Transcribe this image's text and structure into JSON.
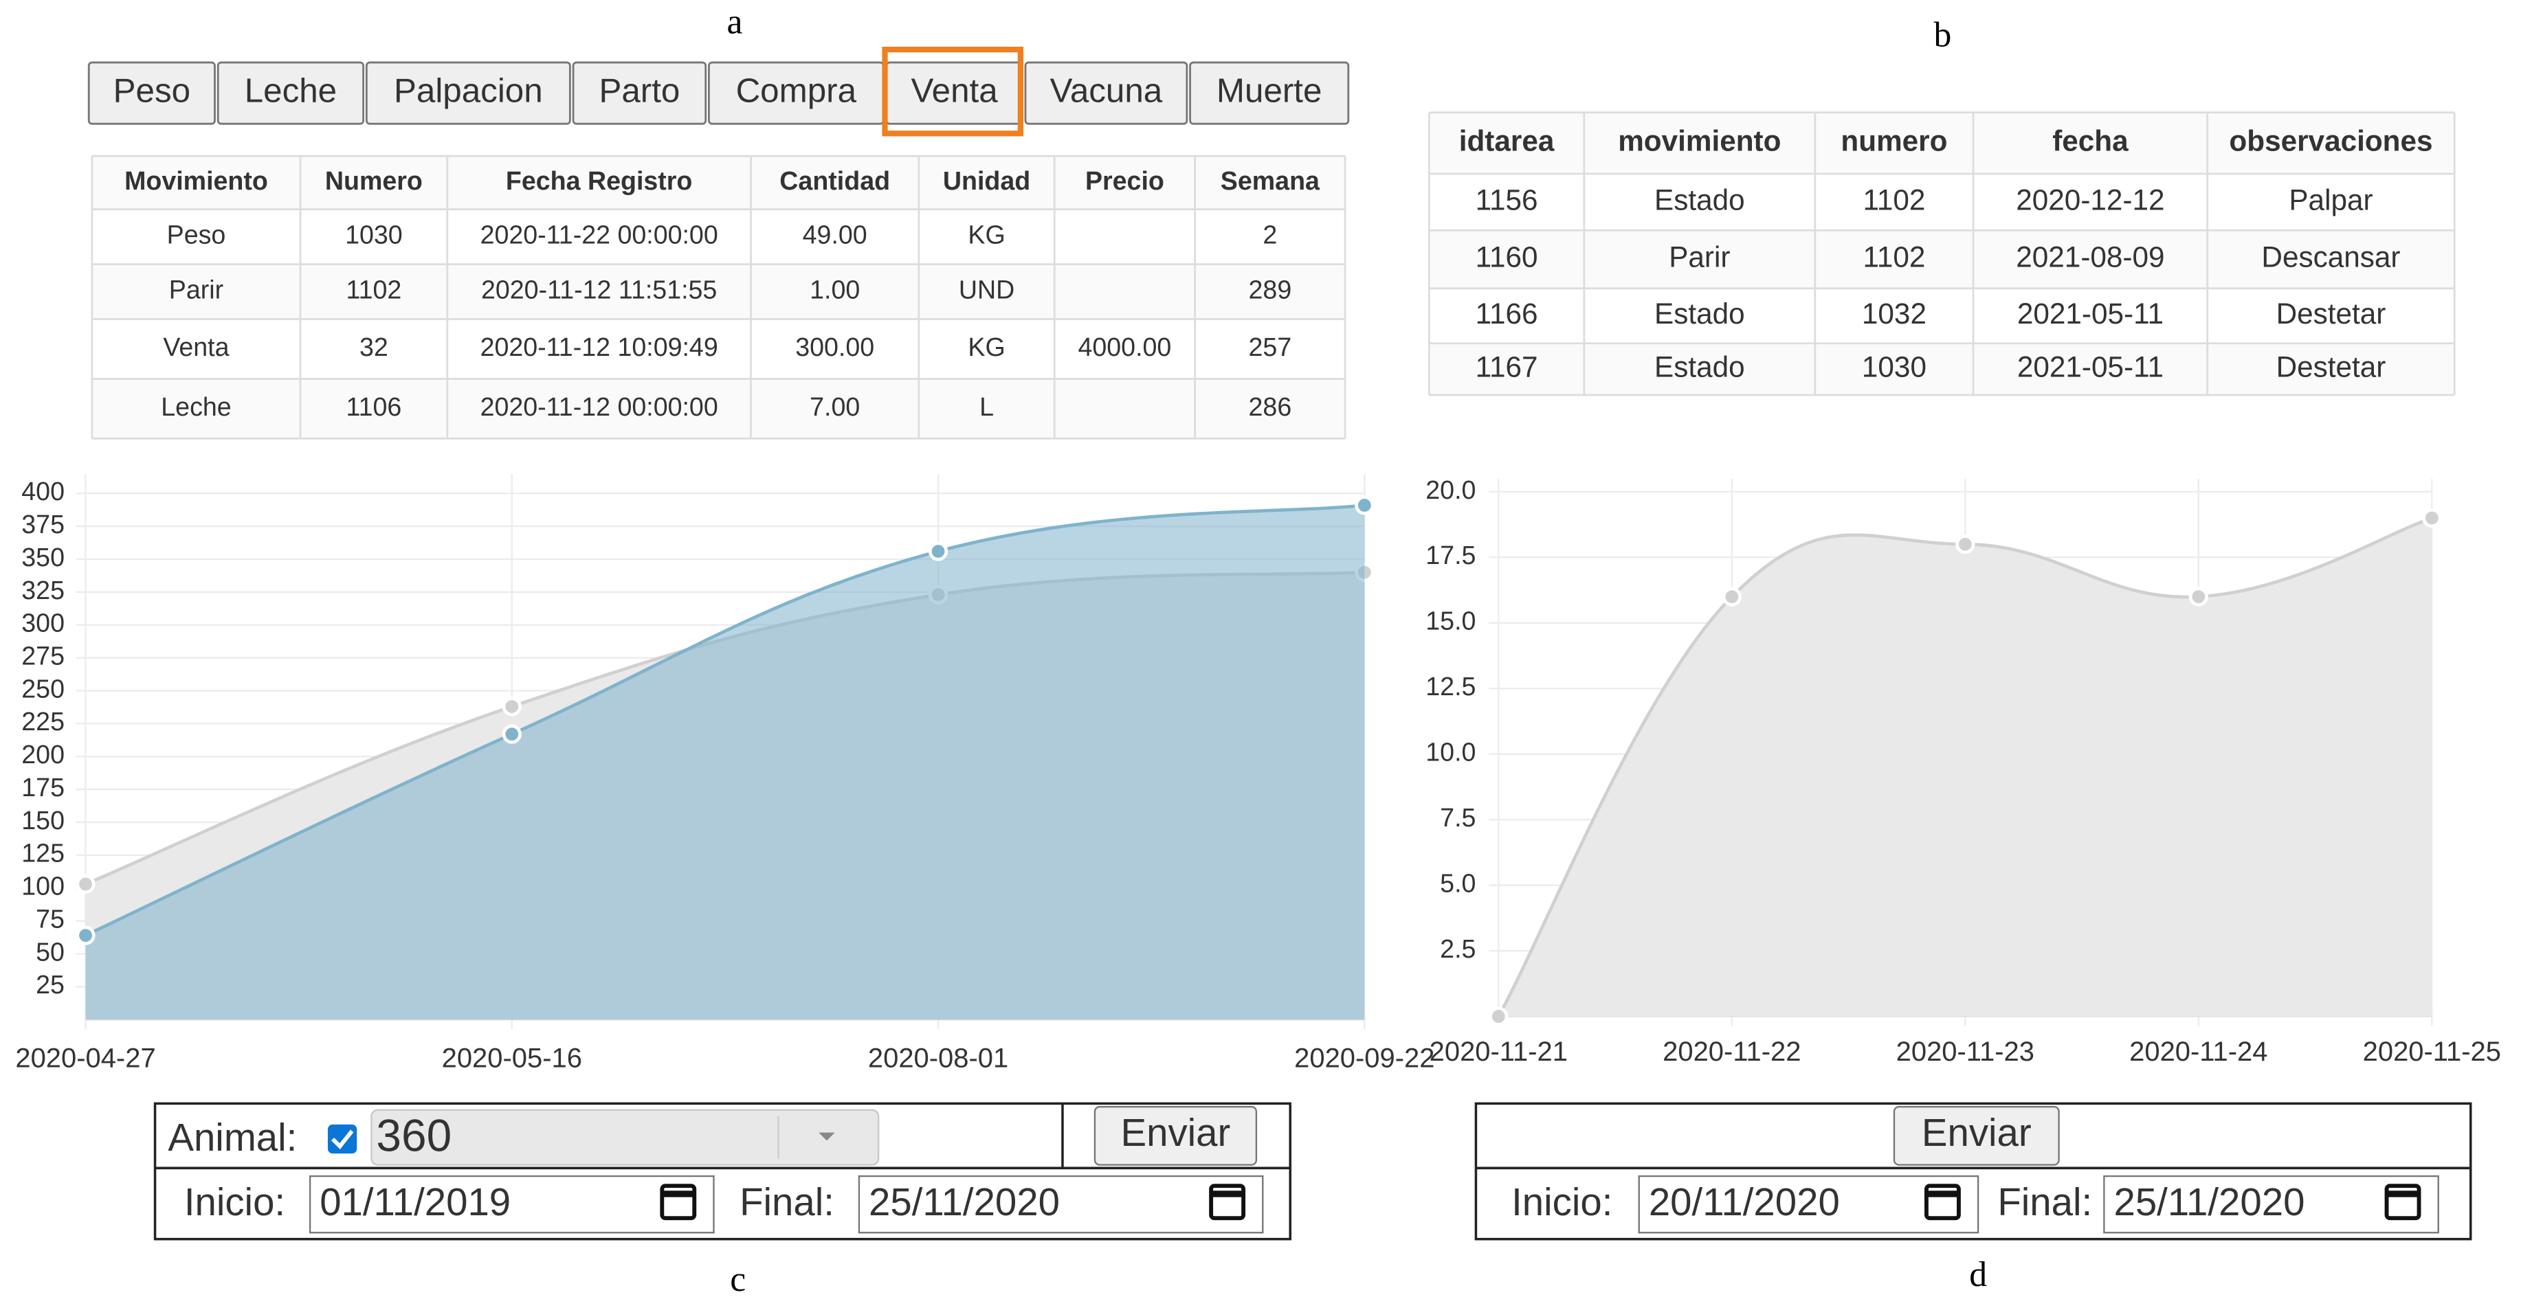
{
  "figure_labels": [
    "a",
    "b",
    "c",
    "d"
  ],
  "panel_a": {
    "buttons": [
      "Peso",
      "Leche",
      "Palpacion",
      "Parto",
      "Compra",
      "Venta",
      "Vacuna",
      "Muerte"
    ],
    "table": {
      "columns": [
        "Movimiento",
        "Numero",
        "Fecha Registro",
        "Cantidad",
        "Unidad",
        "Precio",
        "Semana"
      ],
      "rows": [
        [
          "Peso",
          "1030",
          "2020-11-22 00:00:00",
          "49.00",
          "KG",
          null,
          "2"
        ],
        [
          "Parir",
          "1102",
          "2020-11-12 11:51:55",
          "1.00",
          "UND",
          null,
          "289"
        ],
        [
          "Venta",
          "32",
          "2020-11-12 10:09:49",
          "300.00",
          "KG",
          "4000.00",
          "257"
        ],
        [
          "Leche",
          "1106",
          "2020-11-12 00:00:00",
          "7.00",
          "L",
          null,
          "286"
        ]
      ]
    }
  },
  "panel_b": {
    "table": {
      "columns": [
        "idtarea",
        "movimiento",
        "numero",
        "fecha",
        "observaciones"
      ],
      "rows": [
        [
          "1156",
          "Estado",
          "1102",
          "2020-12-12",
          "Palpar"
        ],
        [
          "1160",
          "Parir",
          "1102",
          "2021-08-09",
          "Descansar"
        ],
        [
          "1166",
          "Estado",
          "1032",
          "2021-05-11",
          "Destetar"
        ],
        [
          "1167",
          "Estado",
          "1030",
          "2021-05-11",
          "Destetar"
        ]
      ]
    }
  },
  "form_c": {
    "animal_label": "Animal:",
    "animal_value": "360",
    "submit": "Enviar",
    "start_label": "Inicio:",
    "start": "01/11/2019",
    "end_label": "Final:",
    "end": "25/11/2020"
  },
  "form_d": {
    "submit": "Enviar",
    "start_label": "Inicio:",
    "start": "20/11/2020",
    "end_label": "Final:",
    "end": "25/11/2020"
  },
  "chart_data": [
    {
      "type": "area",
      "categories": [
        "2020-04-27",
        "2020-05-16",
        "2020-08-01",
        "2020-09-22"
      ],
      "series": [
        {
          "color": "#d0d0d0",
          "values": [
            103,
            238,
            323,
            340
          ]
        },
        {
          "color": "#7fb3cc",
          "values": [
            64,
            217,
            356,
            391
          ]
        }
      ],
      "ylim": [
        0,
        400
      ],
      "yticks": [
        25,
        50,
        75,
        100,
        125,
        150,
        175,
        200,
        225,
        250,
        275,
        300,
        325,
        350,
        375,
        400
      ],
      "grid": true
    },
    {
      "type": "area",
      "categories": [
        "2020-11-21",
        "2020-11-22",
        "2020-11-23",
        "2020-11-24",
        "2020-11-25"
      ],
      "series": [
        {
          "color": "#d0d0d0",
          "values": [
            0,
            16,
            18,
            16,
            19
          ]
        }
      ],
      "ylim": [
        0,
        20
      ],
      "yticks": [
        2.5,
        {
          "value": 5,
          "label": "5.0"
        },
        7.5,
        {
          "value": 10,
          "label": "10.0"
        },
        12.5,
        {
          "value": 15,
          "label": "15.0"
        },
        17.5,
        {
          "value": 20,
          "label": "20.0"
        }
      ],
      "grid": true
    }
  ]
}
